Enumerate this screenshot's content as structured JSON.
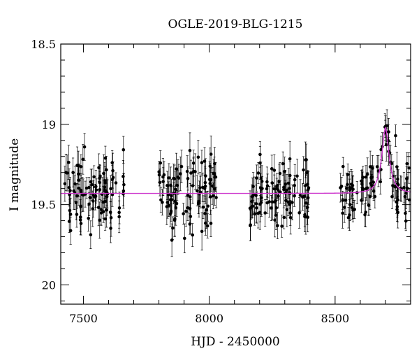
{
  "chart_data": {
    "type": "scatter",
    "title": "OGLE-2019-BLG-1215",
    "xlabel": "HJD - 2450000",
    "ylabel": "I magnitude",
    "xlim": [
      7410,
      8800
    ],
    "ylim": [
      20.12,
      18.5
    ],
    "y_inverted": true,
    "x_ticks": [
      7500,
      8000,
      8500
    ],
    "x_tick_labels": [
      "7500",
      "8000",
      "8500"
    ],
    "y_ticks": [
      18.5,
      19,
      19.5,
      20
    ],
    "y_tick_labels": [
      "18.5",
      "19",
      "19.5",
      "20"
    ],
    "grid": false,
    "legend": "none",
    "colors": {
      "points": "#000000",
      "model": "#cc33cc",
      "model_core": "#000000",
      "axes": "#000000"
    },
    "model": {
      "name": "",
      "baseline_mag": 19.43,
      "peak_time": 8700,
      "peak_mag": 19.02,
      "width_days": 32,
      "x_range": [
        7410,
        8800
      ]
    },
    "seasons": [
      {
        "start": 7420,
        "end": 7665,
        "mean_mag": 19.43,
        "scatter": 0.12,
        "error": 0.09
      },
      {
        "start": 7800,
        "end": 8030,
        "mean_mag": 19.43,
        "scatter": 0.11,
        "error": 0.09
      },
      {
        "start": 8160,
        "end": 8400,
        "mean_mag": 19.43,
        "scatter": 0.1,
        "error": 0.09
      },
      {
        "start": 8520,
        "end": 8795,
        "mean_mag": 19.44,
        "scatter": 0.1,
        "error": 0.08
      }
    ],
    "points_per_season": 95
  }
}
